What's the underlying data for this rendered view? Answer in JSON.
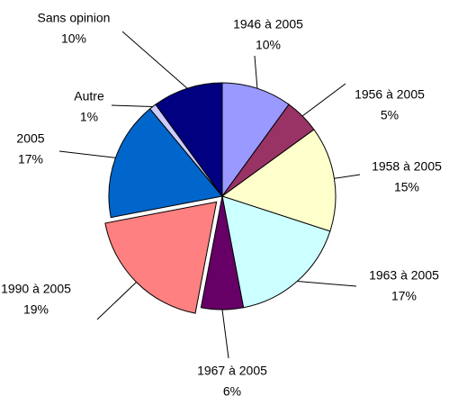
{
  "chart_data": {
    "type": "pie",
    "categories": [
      "1946 à 2005",
      "1956 à 2005",
      "1958 à 2005",
      "1963 à 2005",
      "1967 à 2005",
      "1990 à 2005",
      "2005",
      "Autre",
      "Sans opinion"
    ],
    "values": [
      10,
      5,
      15,
      17,
      6,
      19,
      17,
      1,
      10
    ],
    "value_labels": [
      "10%",
      "5%",
      "15%",
      "17%",
      "6%",
      "19%",
      "17%",
      "1%",
      "10%"
    ],
    "colors": [
      "#9999ff",
      "#993366",
      "#ffffcc",
      "#ccffff",
      "#660066",
      "#ff8080",
      "#0066cc",
      "#ccccff",
      "#000080"
    ],
    "exploded": [
      "1990 à 2005"
    ]
  }
}
